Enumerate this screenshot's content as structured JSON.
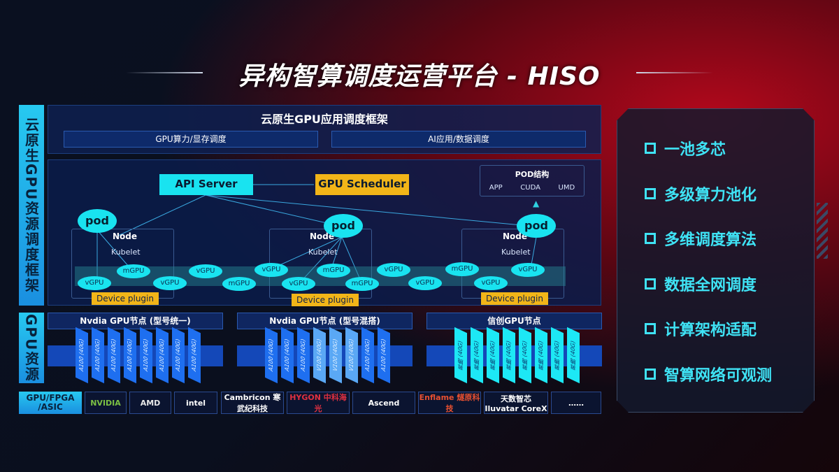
{
  "title": "异构智算调度运营平台 - HISO",
  "left_labels": {
    "framework": "云原生GPU资源调度框架",
    "gpu": "GPU资源",
    "hw": "GPU/FPGA /ASIC"
  },
  "top": {
    "title": "云原生GPU应用调度框架",
    "bar1": "GPU算力/显存调度",
    "bar2": "AI应用/数据调度"
  },
  "diagram": {
    "api_server": "API Server",
    "gpu_scheduler": "GPU Scheduler",
    "pod_struct": {
      "title": "POD结构",
      "items": [
        "APP",
        "CUDA",
        "UMD"
      ]
    },
    "pod": "pod",
    "node": "Node",
    "kubelet": "Kubelet",
    "device_plugin": "Device plugin",
    "gpus": [
      "vGPU",
      "mGPU",
      "vGPU",
      "vGPU",
      "mGPU",
      "vGPU",
      "mGPU",
      "vGPU",
      "mGPU",
      "vGPU",
      "vGPU",
      "mGPU",
      "vGPU",
      "vGPU"
    ]
  },
  "gpu_groups": [
    {
      "title": "Nvdia GPU节点 (型号统一)",
      "cards": [
        "A100 (40G)",
        "A100 (40G)",
        "A100 (40G)",
        "A100 (40G)",
        "A100 (40G)",
        "A100 (40G)",
        "A100 (40G)",
        "A100 (40G)"
      ]
    },
    {
      "title": "Nvdia GPU节点 (型号混搭)",
      "cards": [
        "A100 (40G)",
        "A100 (40G)",
        "A100 (40G)",
        "V100 (40G)",
        "V100 (40G)",
        "V100 (40G)",
        "A100 (40G)",
        "A100 (40G)"
      ]
    },
    {
      "title": "信创GPU节点",
      "cards": [
        "昇腾 (40G)",
        "昇腾 (40G)",
        "昇腾 (40G)",
        "昇腾 (40G)",
        "昇腾 (40G)",
        "昇腾 (40G)",
        "昇腾 (40G)",
        "昇腾 (40G)"
      ]
    }
  ],
  "vendors": [
    "NVIDIA",
    "AMD",
    "intel",
    "Cambricon 寒武纪科技",
    "HYGON 中科海光",
    "Ascend",
    "Enflame 燧原科技",
    "天数智芯 Iluvatar CoreX",
    "……"
  ],
  "features": [
    "一池多芯",
    "多级算力池化",
    "多维调度算法",
    "数据全网调度",
    "计算架构适配",
    "智算网络可观测"
  ],
  "colors": {
    "cyan": "#19e3f0",
    "gold": "#f2b518",
    "blue": "#1e6ff0"
  }
}
